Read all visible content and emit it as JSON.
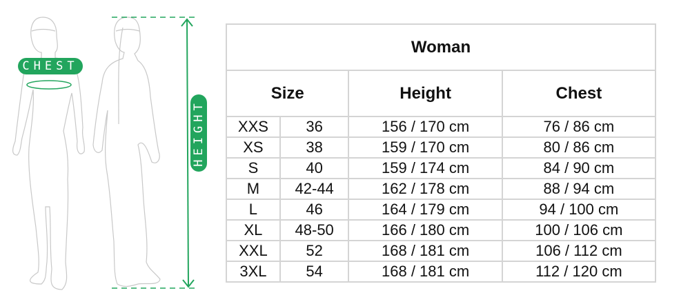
{
  "figure": {
    "chest_label": "CHEST",
    "height_label": "HEIGHT",
    "accent_color": "#22a55d"
  },
  "table": {
    "title": "Woman",
    "headers": [
      "Size",
      "Height",
      "Chest"
    ],
    "rows": [
      {
        "size": "XXS",
        "eu": "36",
        "height": "156 / 170 cm",
        "chest": "76 / 86 cm"
      },
      {
        "size": "XS",
        "eu": "38",
        "height": "159 / 170 cm",
        "chest": "80 / 86 cm"
      },
      {
        "size": "S",
        "eu": "40",
        "height": "159 / 174 cm",
        "chest": "84 / 90 cm"
      },
      {
        "size": "M",
        "eu": "42-44",
        "height": "162 / 178 cm",
        "chest": "88 / 94 cm"
      },
      {
        "size": "L",
        "eu": "46",
        "height": "164 / 179 cm",
        "chest": "94 / 100 cm"
      },
      {
        "size": "XL",
        "eu": "48-50",
        "height": "166 / 180 cm",
        "chest": "100 / 106 cm"
      },
      {
        "size": "XXL",
        "eu": "52",
        "height": "168 / 181 cm",
        "chest": "106 / 112 cm"
      },
      {
        "size": "3XL",
        "eu": "54",
        "height": "168 / 181 cm",
        "chest": "112 / 120 cm"
      }
    ]
  }
}
